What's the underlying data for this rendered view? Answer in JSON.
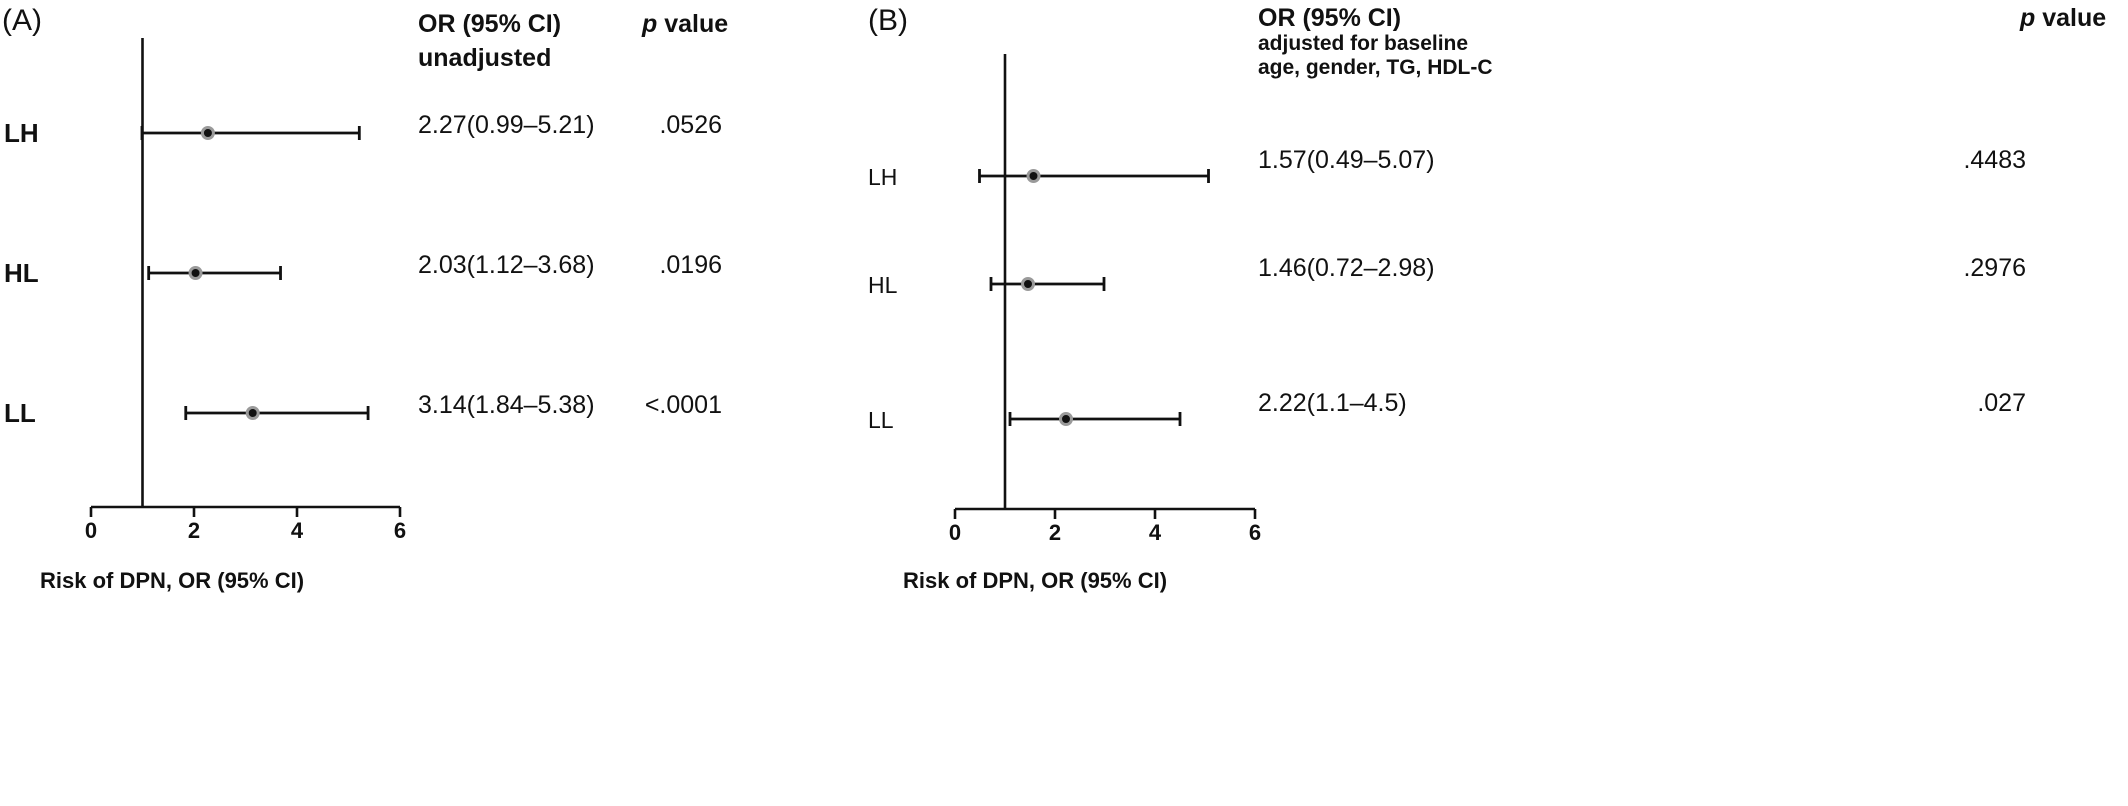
{
  "chart_data": [
    {
      "type": "forest",
      "panel_label": "(A)",
      "xlabel": "Risk of DPN, OR (95% CI)",
      "xlim": [
        0,
        6
      ],
      "xticks": [
        0,
        2,
        4,
        6
      ],
      "reference_line": 1,
      "header_or": "OR (95% CI)",
      "header_or_sub": [
        "unadjusted"
      ],
      "header_p_italic": "p",
      "header_p_rest": " value",
      "rows": [
        {
          "label": "LH",
          "or": 2.27,
          "lo": 0.99,
          "hi": 5.21,
          "or_text": "2.27(0.99–5.21)",
          "p": ".0526"
        },
        {
          "label": "HL",
          "or": 2.03,
          "lo": 1.12,
          "hi": 3.68,
          "or_text": "2.03(1.12–3.68)",
          "p": ".0196"
        },
        {
          "label": "LL",
          "or": 3.14,
          "lo": 1.84,
          "hi": 5.38,
          "or_text": "3.14(1.84–5.38)",
          "p": "<.0001"
        }
      ]
    },
    {
      "type": "forest",
      "panel_label": "(B)",
      "xlabel": "Risk of DPN, OR (95% CI)",
      "xlim": [
        0,
        6
      ],
      "xticks": [
        0,
        2,
        4,
        6
      ],
      "reference_line": 1,
      "header_or": "OR (95% CI)",
      "header_or_sub": [
        "adjusted for baseline",
        "age, gender, TG, HDL-C"
      ],
      "header_p_italic": "p",
      "header_p_rest": " value",
      "rows": [
        {
          "label": "LH",
          "or": 1.57,
          "lo": 0.49,
          "hi": 5.07,
          "or_text": "1.57(0.49–5.07)",
          "p": ".4483"
        },
        {
          "label": "HL",
          "or": 1.46,
          "lo": 0.72,
          "hi": 2.98,
          "or_text": "1.46(0.72–2.98)",
          "p": ".2976"
        },
        {
          "label": "LL",
          "or": 2.22,
          "lo": 1.1,
          "hi": 4.5,
          "or_text": "2.22(1.1–4.5)",
          "p": ".027"
        }
      ]
    }
  ]
}
